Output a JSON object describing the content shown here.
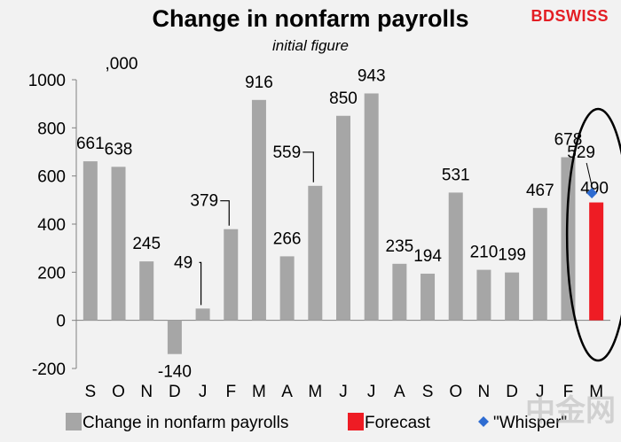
{
  "header": {
    "title": "Change in nonfarm payrolls",
    "subtitle": "initial figure",
    "logo": {
      "left": "BDSWISS",
      "right": ""
    },
    "watermark": "中金网"
  },
  "colors": {
    "background": "#f2f2f2",
    "bars": "#a6a6a6",
    "forecast": "#ee1c24",
    "whisper": "#2e6cd1"
  },
  "chart_data": {
    "type": "bar",
    "unit_label": ",000",
    "categories": [
      "S",
      "O",
      "N",
      "D",
      "J",
      "F",
      "M",
      "A",
      "M",
      "J",
      "J",
      "A",
      "S",
      "O",
      "N",
      "D",
      "J",
      "F",
      "M"
    ],
    "series": [
      {
        "name": "Change in nonfarm payrolls",
        "values": [
          661,
          638,
          245,
          -140,
          49,
          379,
          916,
          266,
          559,
          850,
          943,
          235,
          194,
          531,
          210,
          199,
          467,
          678,
          null
        ]
      },
      {
        "name": "Forecast",
        "values": [
          null,
          null,
          null,
          null,
          null,
          null,
          null,
          null,
          null,
          null,
          null,
          null,
          null,
          null,
          null,
          null,
          null,
          null,
          490
        ]
      },
      {
        "name": "\"Whisper\"",
        "type": "scatter",
        "values": [
          null,
          null,
          null,
          null,
          null,
          null,
          null,
          null,
          null,
          null,
          null,
          null,
          null,
          null,
          null,
          null,
          null,
          null,
          529
        ]
      }
    ],
    "ylim": [
      -200,
      1000
    ],
    "yticks": [
      -200,
      0,
      200,
      400,
      600,
      800,
      1000
    ],
    "legend_position": "bottom",
    "highlight": "ellipse around last category"
  }
}
